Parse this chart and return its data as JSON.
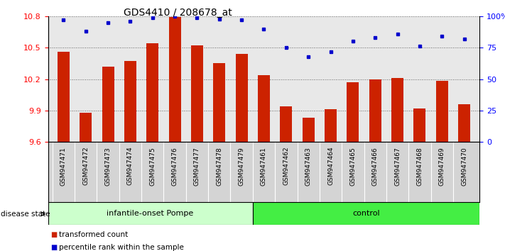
{
  "title": "GDS4410 / 208678_at",
  "samples": [
    "GSM947471",
    "GSM947472",
    "GSM947473",
    "GSM947474",
    "GSM947475",
    "GSM947476",
    "GSM947477",
    "GSM947478",
    "GSM947479",
    "GSM947461",
    "GSM947462",
    "GSM947463",
    "GSM947464",
    "GSM947465",
    "GSM947466",
    "GSM947467",
    "GSM947468",
    "GSM947469",
    "GSM947470"
  ],
  "bar_values": [
    10.46,
    9.88,
    10.32,
    10.37,
    10.54,
    10.79,
    10.52,
    10.35,
    10.44,
    10.24,
    9.94,
    9.83,
    9.91,
    10.17,
    10.2,
    10.21,
    9.92,
    10.18,
    9.96
  ],
  "percentile_values": [
    97,
    88,
    95,
    96,
    99,
    100,
    99,
    98,
    97,
    90,
    75,
    68,
    72,
    80,
    83,
    86,
    76,
    84,
    82
  ],
  "bar_color": "#cc2200",
  "percentile_color": "#0000cc",
  "ylim_left": [
    9.6,
    10.8
  ],
  "ylim_right": [
    0,
    100
  ],
  "yticks_left": [
    9.6,
    9.9,
    10.2,
    10.5,
    10.8
  ],
  "yticks_right": [
    0,
    25,
    50,
    75,
    100
  ],
  "ytick_labels_right": [
    "0",
    "25",
    "50",
    "75",
    "100%"
  ],
  "group1_label": "infantile-onset Pompe",
  "group2_label": "control",
  "group1_count": 9,
  "group2_count": 10,
  "group1_color": "#ccffcc",
  "group2_color": "#44ee44",
  "disease_state_label": "disease state",
  "legend_bar_label": "transformed count",
  "legend_pct_label": "percentile rank within the sample",
  "plot_bg_color": "#e8e8e8",
  "xtick_bg_color": "#d4d4d4",
  "dotted_grid_color": "#666666",
  "white": "#ffffff"
}
